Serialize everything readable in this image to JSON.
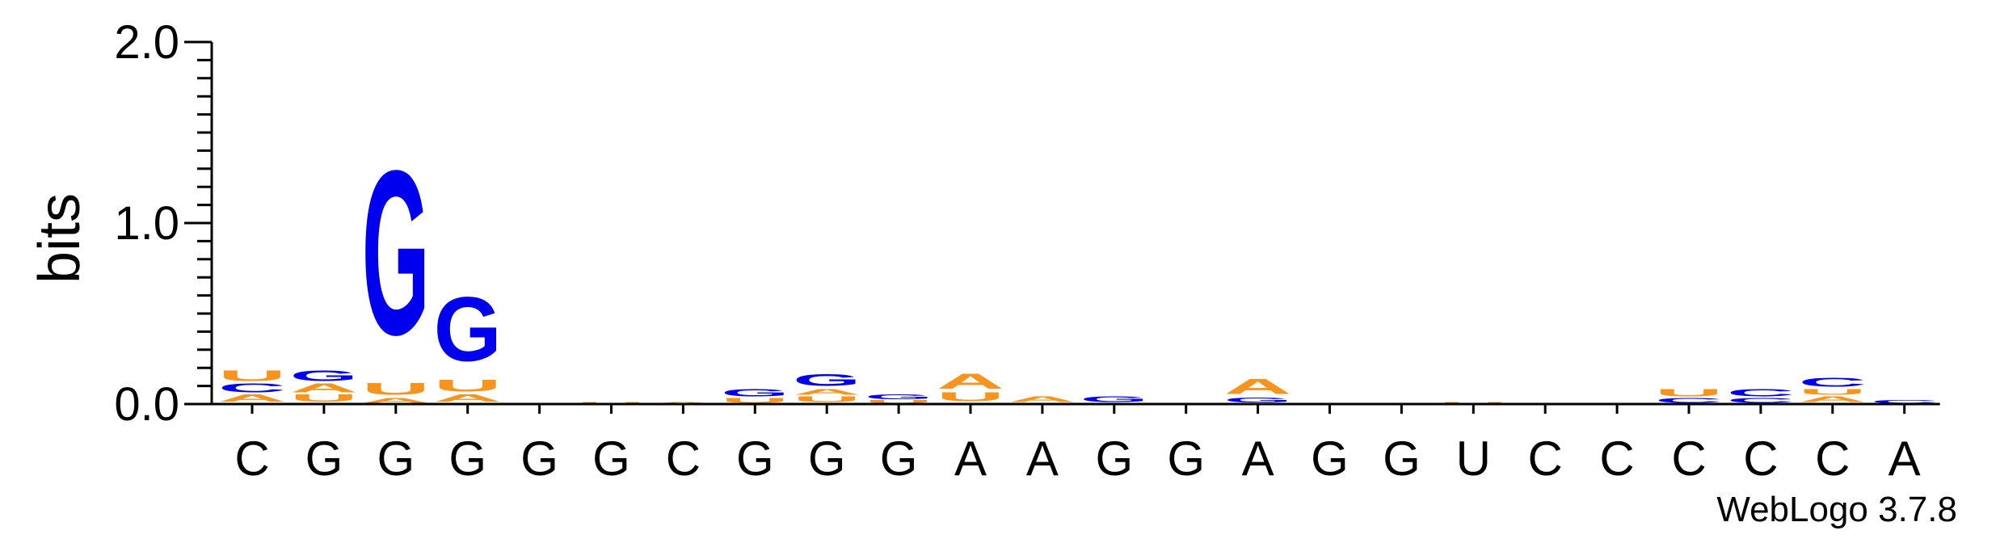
{
  "chart_data": {
    "type": "sequence-logo",
    "ylabel": "bits",
    "ylim": [
      0,
      2.0
    ],
    "yticks": [
      {
        "value": 0.0,
        "label": "0.0"
      },
      {
        "value": 1.0,
        "label": "1.0"
      },
      {
        "value": 2.0,
        "label": "2.0"
      }
    ],
    "grid": false,
    "colors": {
      "A": "#f7941d",
      "U": "#f7941d",
      "G": "#0000ee",
      "C": "#0000ee",
      "axis": "#000000"
    },
    "categories": [
      "C",
      "G",
      "G",
      "G",
      "G",
      "G",
      "C",
      "G",
      "G",
      "G",
      "A",
      "A",
      "G",
      "G",
      "A",
      "G",
      "G",
      "U",
      "C",
      "C",
      "C",
      "C",
      "C",
      "A"
    ],
    "positions": [
      {
        "x": "C",
        "stack": [
          {
            "letter": "A",
            "bits": 0.05
          },
          {
            "letter": "C",
            "bits": 0.06
          },
          {
            "letter": "U",
            "bits": 0.07
          }
        ]
      },
      {
        "x": "G",
        "stack": [
          {
            "letter": "U",
            "bits": 0.05
          },
          {
            "letter": "A",
            "bits": 0.06
          },
          {
            "letter": "G",
            "bits": 0.07
          }
        ]
      },
      {
        "x": "G",
        "stack": [
          {
            "letter": "A",
            "bits": 0.03
          },
          {
            "letter": "U",
            "bits": 0.08
          },
          {
            "letter": "G",
            "bits": 1.1
          }
        ]
      },
      {
        "x": "G",
        "stack": [
          {
            "letter": "A",
            "bits": 0.05
          },
          {
            "letter": "U",
            "bits": 0.08
          },
          {
            "letter": "G",
            "bits": 0.43
          }
        ]
      },
      {
        "x": "G",
        "stack": []
      },
      {
        "x": "G",
        "stack": [
          {
            "letter": "U",
            "bits": 0.01
          }
        ]
      },
      {
        "x": "C",
        "stack": [
          {
            "letter": "A",
            "bits": 0.01
          }
        ]
      },
      {
        "x": "G",
        "stack": [
          {
            "letter": "U",
            "bits": 0.03
          },
          {
            "letter": "G",
            "bits": 0.05
          }
        ]
      },
      {
        "x": "G",
        "stack": [
          {
            "letter": "U",
            "bits": 0.04
          },
          {
            "letter": "A",
            "bits": 0.04
          },
          {
            "letter": "G",
            "bits": 0.08
          }
        ]
      },
      {
        "x": "G",
        "stack": [
          {
            "letter": "U",
            "bits": 0.02
          },
          {
            "letter": "G",
            "bits": 0.03
          }
        ]
      },
      {
        "x": "A",
        "stack": [
          {
            "letter": "U",
            "bits": 0.06
          },
          {
            "letter": "A",
            "bits": 0.1
          }
        ]
      },
      {
        "x": "A",
        "stack": [
          {
            "letter": "A",
            "bits": 0.04
          }
        ]
      },
      {
        "x": "G",
        "stack": [
          {
            "letter": "G",
            "bits": 0.04
          }
        ]
      },
      {
        "x": "G",
        "stack": []
      },
      {
        "x": "A",
        "stack": [
          {
            "letter": "G",
            "bits": 0.03
          },
          {
            "letter": "A",
            "bits": 0.1
          }
        ]
      },
      {
        "x": "G",
        "stack": []
      },
      {
        "x": "G",
        "stack": []
      },
      {
        "x": "U",
        "stack": [
          {
            "letter": "U",
            "bits": 0.01
          }
        ]
      },
      {
        "x": "C",
        "stack": []
      },
      {
        "x": "C",
        "stack": []
      },
      {
        "x": "C",
        "stack": [
          {
            "letter": "C",
            "bits": 0.03
          },
          {
            "letter": "U",
            "bits": 0.05
          }
        ]
      },
      {
        "x": "C",
        "stack": [
          {
            "letter": "C",
            "bits": 0.03
          },
          {
            "letter": "C",
            "bits": 0.05
          }
        ]
      },
      {
        "x": "C",
        "stack": [
          {
            "letter": "A",
            "bits": 0.04
          },
          {
            "letter": "U",
            "bits": 0.04
          },
          {
            "letter": "C",
            "bits": 0.06
          }
        ]
      },
      {
        "x": "A",
        "stack": [
          {
            "letter": "C",
            "bits": 0.02
          }
        ]
      }
    ],
    "credit": "WebLogo 3.7.8"
  }
}
